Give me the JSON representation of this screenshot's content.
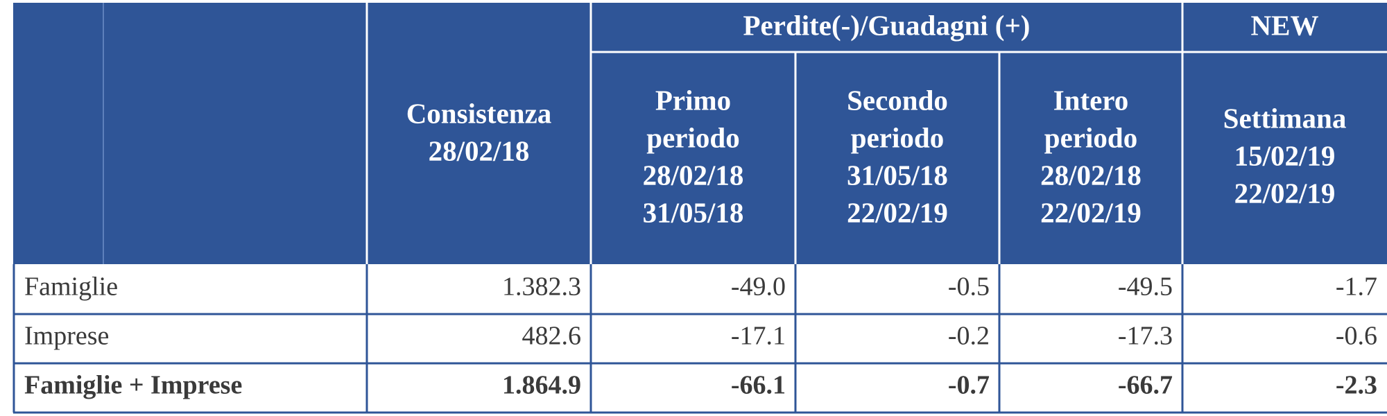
{
  "table": {
    "group_headers": [
      {
        "label": "Perdite(-)/Guadagni (+)"
      },
      {
        "label": "NEW"
      }
    ],
    "columns": [
      {
        "lines": [
          "Consistenza",
          "28/02/18"
        ]
      },
      {
        "lines": [
          "Primo",
          "periodo",
          "28/02/18",
          "31/05/18"
        ]
      },
      {
        "lines": [
          "Secondo",
          "periodo",
          "31/05/18",
          "22/02/19"
        ]
      },
      {
        "lines": [
          "Intero",
          "periodo",
          "28/02/18",
          "22/02/19"
        ]
      },
      {
        "lines": [
          "Settimana",
          "15/02/19",
          "22/02/19"
        ]
      }
    ],
    "rows": [
      {
        "label": "Famiglie",
        "cells": [
          "1.382.3",
          "-49.0",
          "-0.5",
          "-49.5",
          "-1.7"
        ]
      },
      {
        "label": "Imprese",
        "cells": [
          "482.6",
          "-17.1",
          "-0.2",
          "-17.3",
          "-0.6"
        ]
      },
      {
        "label": "Famiglie + Imprese",
        "cells": [
          "1.864.9",
          "-66.1",
          "-0.7",
          "-66.7",
          "-2.3"
        ]
      }
    ]
  }
}
